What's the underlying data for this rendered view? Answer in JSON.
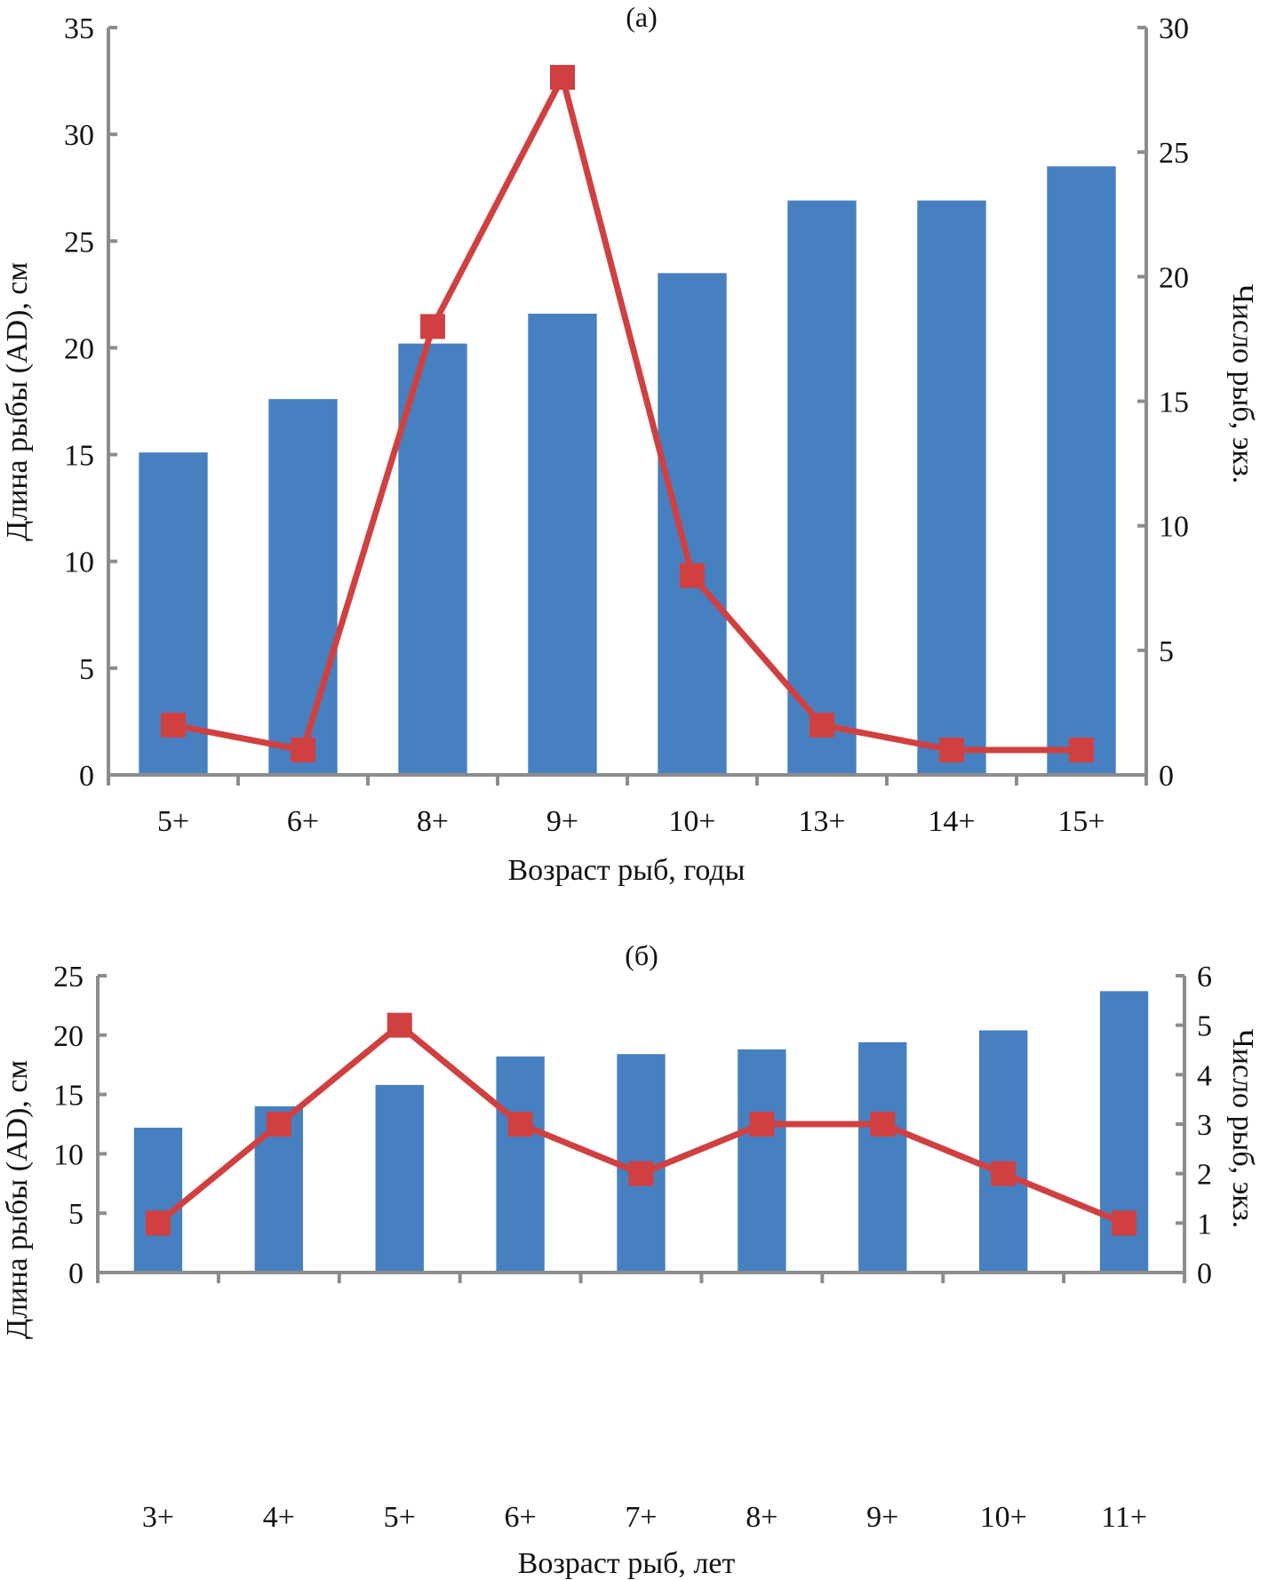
{
  "chart_data": [
    {
      "type": "bar",
      "panel_label": "(а)",
      "title": "(а)",
      "xlabel": "Возраст рыб, годы",
      "ylabel": "Длина рыбы (AD), см",
      "y2label": "Число рыб, экз.",
      "categories": [
        "5+",
        "6+",
        "8+",
        "9+",
        "10+",
        "13+",
        "14+",
        "15+"
      ],
      "ylim": [
        0,
        35
      ],
      "yticks": [
        0,
        5,
        10,
        15,
        20,
        25,
        30,
        35
      ],
      "y2lim": [
        0,
        30
      ],
      "y2ticks": [
        0,
        5,
        10,
        15,
        20,
        25,
        30
      ],
      "grid": false,
      "series": [
        {
          "name": "Длина рыбы (AD), см",
          "type": "bar",
          "axis": "left",
          "color": "#4780c1",
          "values": [
            15.1,
            17.6,
            20.2,
            21.6,
            23.5,
            26.9,
            26.9,
            28.5
          ]
        },
        {
          "name": "Число рыб, экз.",
          "type": "line",
          "axis": "right",
          "color": "#d04040",
          "marker": "square",
          "values": [
            2,
            1,
            18,
            28,
            8,
            2,
            1,
            1
          ]
        }
      ]
    },
    {
      "type": "bar",
      "panel_label": "(б)",
      "title": "(б)",
      "xlabel": "Возраст рыб, лет",
      "ylabel": "Длина рыбы (AD), см",
      "y2label": "Число рыб, экз.",
      "categories": [
        "3+",
        "4+",
        "5+",
        "6+",
        "7+",
        "8+",
        "9+",
        "10+",
        "11+"
      ],
      "ylim": [
        0,
        25
      ],
      "yticks": [
        0,
        5,
        10,
        15,
        20,
        25
      ],
      "y2lim": [
        0,
        6
      ],
      "y2ticks": [
        0,
        1,
        2,
        3,
        4,
        5,
        6
      ],
      "grid": false,
      "series": [
        {
          "name": "Длина рыбы (AD), см",
          "type": "bar",
          "axis": "left",
          "color": "#4780c1",
          "values": [
            12.2,
            14.0,
            15.8,
            18.2,
            18.4,
            18.8,
            19.4,
            20.4,
            23.7
          ]
        },
        {
          "name": "Число рыб, экз.",
          "type": "line",
          "axis": "right",
          "color": "#d04040",
          "marker": "square",
          "values": [
            1,
            3,
            5,
            3,
            2,
            3,
            3,
            2,
            1
          ]
        }
      ]
    }
  ]
}
